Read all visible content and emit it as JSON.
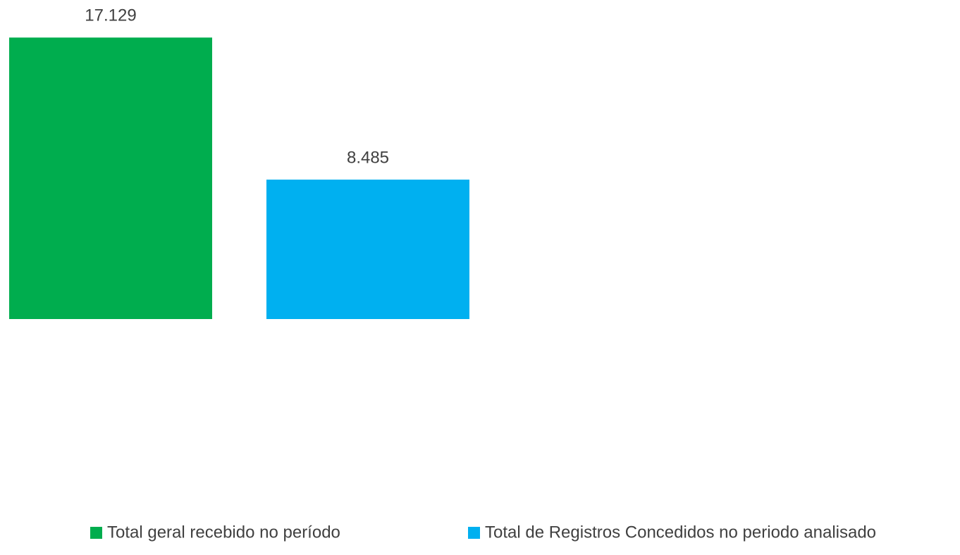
{
  "chart_data": {
    "type": "bar",
    "series": [
      {
        "name": "Total geral recebido no período",
        "color": "#00ad4e",
        "values": [
          17129
        ],
        "value_labels": [
          "17.129"
        ]
      },
      {
        "name": "Total de Registros Concedidos no periodo analisado",
        "color": "#00b0f0",
        "values": [
          8485
        ],
        "value_labels": [
          "8.485"
        ]
      }
    ],
    "ylim": [
      0,
      18000
    ],
    "legend": "bottom"
  }
}
